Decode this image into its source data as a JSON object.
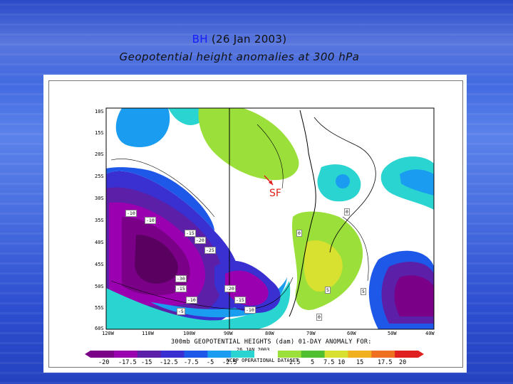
{
  "title": {
    "prefix": "BH",
    "date": "(26 Jan 2003)"
  },
  "subtitle": "Geopotential height anomalies at 300 hPa",
  "annotation": {
    "label": "SF",
    "color": "#e0201c"
  },
  "map": {
    "lat_labels": [
      "10S",
      "15S",
      "20S",
      "25S",
      "30S",
      "35S",
      "40S",
      "45S",
      "50S",
      "55S",
      "60S"
    ],
    "lon_labels": [
      "120W",
      "110W",
      "100W",
      "90W",
      "80W",
      "70W",
      "60W",
      "50W",
      "40W"
    ],
    "contour_labels": [
      "-10",
      "-10",
      "-15",
      "-20",
      "-25",
      "-30",
      "-15",
      "-10",
      "-5",
      "-20",
      "-15",
      "-10",
      "0",
      "0",
      "5",
      "5",
      "0"
    ],
    "caption_line1": "300mb GEOPOTENTIAL HEIGHTS (dam)     01-DAY ANOMALY FOR:",
    "caption_line2": "26 JAN 2003",
    "caption_line3": "NCEP OPERATIONAL DATASET"
  },
  "colorbar": {
    "labels": [
      "-20",
      "-17.5",
      "-15",
      "-12.5",
      "-7.5",
      "-5",
      "-2.5",
      "2.5",
      "5",
      "7.5",
      "10",
      "15",
      "17.5",
      "20"
    ],
    "colors": [
      "#7a0088",
      "#9b00b0",
      "#5b1fa8",
      "#3a2fd0",
      "#1e58e8",
      "#1a9cf0",
      "#2ad4d0",
      "#ffffff",
      "#9be03a",
      "#50c030",
      "#d8e030",
      "#f0b020",
      "#ee7020",
      "#e02020"
    ]
  }
}
